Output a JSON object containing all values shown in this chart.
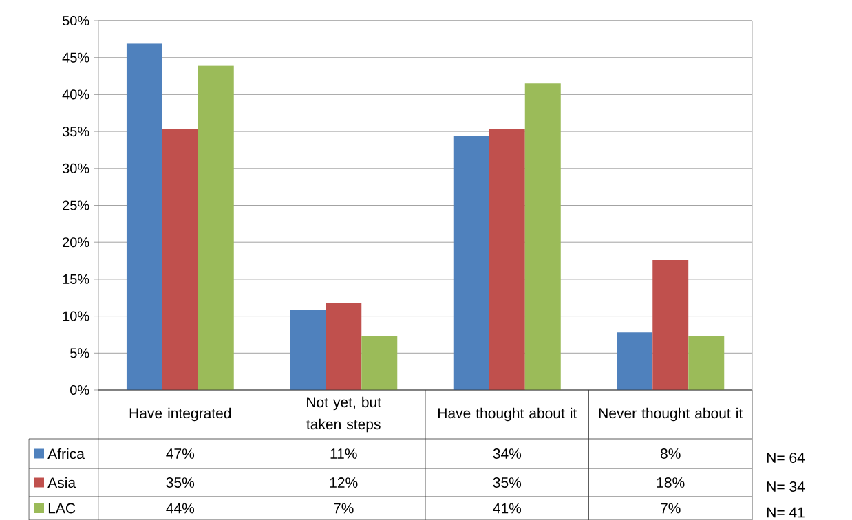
{
  "chart_data": {
    "type": "bar",
    "categories": [
      "Have integrated",
      "Not yet, but taken steps",
      "Have thought about it",
      "Never thought about it"
    ],
    "series": [
      {
        "name": "Africa",
        "color": "#4f81bd",
        "values": [
          46.9,
          10.9,
          34.4,
          7.8
        ],
        "value_labels": [
          "47%",
          "11%",
          "34%",
          "8%"
        ]
      },
      {
        "name": "Asia",
        "color": "#c0504d",
        "values": [
          35.3,
          11.8,
          35.3,
          17.6
        ],
        "value_labels": [
          "35%",
          "12%",
          "35%",
          "18%"
        ]
      },
      {
        "name": "LAC",
        "color": "#9bbb59",
        "values": [
          43.9,
          7.3,
          41.5,
          7.3
        ],
        "value_labels": [
          "44%",
          "7%",
          "41%",
          "7%"
        ]
      }
    ],
    "ylim": [
      0,
      50
    ],
    "yticks": [
      {
        "value": 0,
        "label": "0%"
      },
      {
        "value": 5,
        "label": "5%"
      },
      {
        "value": 10,
        "label": "10%"
      },
      {
        "value": 15,
        "label": "15%"
      },
      {
        "value": 20,
        "label": "20%"
      },
      {
        "value": 25,
        "label": "25%"
      },
      {
        "value": 30,
        "label": "30%"
      },
      {
        "value": 35,
        "label": "35%"
      },
      {
        "value": 40,
        "label": "40%"
      },
      {
        "value": 45,
        "label": "45%"
      },
      {
        "value": 50,
        "label": "50%"
      }
    ],
    "grid": "y",
    "legend": "bottom",
    "annotations": [
      "N= 64",
      "N= 34",
      "N= 41"
    ]
  }
}
